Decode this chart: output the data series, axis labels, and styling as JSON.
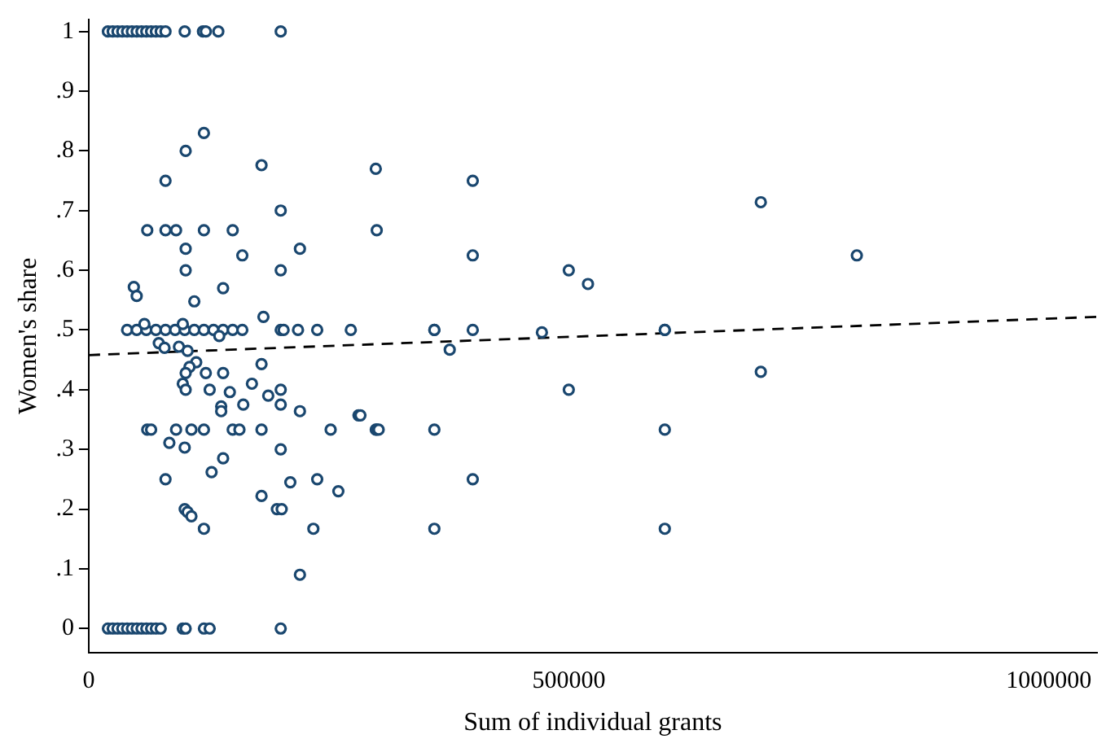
{
  "chart_data": {
    "type": "scatter",
    "xlabel": "Sum of individual grants",
    "ylabel": "Women's share",
    "xlim": [
      0,
      1050000
    ],
    "xticks": [
      0,
      500000,
      1000000
    ],
    "ylim": [
      -0.04,
      1.02
    ],
    "yticks": [
      0,
      {
        "value": 0.1,
        "label": ".1"
      },
      {
        "value": 0.2,
        "label": ".2"
      },
      {
        "value": 0.3,
        "label": ".3"
      },
      {
        "value": 0.4,
        "label": ".4"
      },
      {
        "value": 0.5,
        "label": ".5"
      },
      {
        "value": 0.6,
        "label": ".6"
      },
      {
        "value": 0.7,
        "label": ".7"
      },
      {
        "value": 0.8,
        "label": ".8"
      },
      {
        "value": 0.9,
        "label": ".9"
      },
      1
    ],
    "grid": false,
    "legend": false,
    "marker": "circle",
    "series": [
      {
        "color": "#1a476f",
        "x": [
          20000,
          25000,
          30000,
          35000,
          40000,
          45000,
          50000,
          55000,
          60000,
          65000,
          70000,
          75000,
          80000,
          100000,
          119000,
          122000,
          135000,
          200000,
          120000,
          101000,
          180000,
          80000,
          200000,
          61000,
          80000,
          91000,
          120000,
          150000,
          101000,
          160000,
          220000,
          101000,
          200000,
          47000,
          50000,
          110000,
          140000,
          182000,
          40000,
          50000,
          60000,
          70000,
          80000,
          90000,
          100000,
          110000,
          120000,
          130000,
          140000,
          150000,
          160000,
          200000,
          203000,
          218000,
          238000,
          273000,
          360000,
          400000,
          472000,
          600000,
          58000,
          98000,
          136000,
          73000,
          79000,
          94000,
          103000,
          112000,
          105000,
          101000,
          122000,
          140000,
          180000,
          98000,
          101000,
          126000,
          147000,
          170000,
          187000,
          200000,
          138000,
          138000,
          161000,
          200000,
          220000,
          281000,
          61000,
          65000,
          91000,
          107000,
          120000,
          150000,
          157000,
          180000,
          252000,
          299000,
          84000,
          100000,
          200000,
          140000,
          80000,
          128000,
          210000,
          238000,
          260000,
          180000,
          100000,
          103000,
          107000,
          196000,
          201000,
          120000,
          234000,
          220000,
          20000,
          25000,
          30000,
          35000,
          40000,
          45000,
          50000,
          55000,
          60000,
          65000,
          70000,
          75000,
          98000,
          101000,
          120000,
          126000,
          200000,
          700000,
          800000,
          500000,
          520000,
          700000,
          500000,
          600000,
          600000,
          400000,
          400000,
          400000,
          360000,
          360000,
          283000,
          300000,
          302000,
          299000,
          300000,
          360000,
          376000,
          600000
        ],
        "values": [
          1,
          1,
          1,
          1,
          1,
          1,
          1,
          1,
          1,
          1,
          1,
          1,
          1,
          1,
          1,
          1,
          1,
          1,
          0.83,
          0.8,
          0.776,
          0.75,
          0.7,
          0.667,
          0.667,
          0.667,
          0.667,
          0.667,
          0.636,
          0.625,
          0.636,
          0.6,
          0.6,
          0.572,
          0.557,
          0.548,
          0.57,
          0.522,
          0.5,
          0.5,
          0.5,
          0.5,
          0.5,
          0.5,
          0.5,
          0.5,
          0.5,
          0.5,
          0.5,
          0.5,
          0.5,
          0.5,
          0.5,
          0.5,
          0.5,
          0.5,
          0.5,
          0.5,
          0.496,
          0.5,
          0.51,
          0.51,
          0.49,
          0.478,
          0.47,
          0.472,
          0.465,
          0.446,
          0.438,
          0.428,
          0.428,
          0.428,
          0.443,
          0.41,
          0.4,
          0.4,
          0.396,
          0.41,
          0.39,
          0.4,
          0.372,
          0.364,
          0.375,
          0.375,
          0.364,
          0.357,
          0.333,
          0.333,
          0.333,
          0.333,
          0.333,
          0.333,
          0.333,
          0.333,
          0.333,
          0.333,
          0.311,
          0.303,
          0.3,
          0.285,
          0.25,
          0.262,
          0.245,
          0.25,
          0.23,
          0.222,
          0.2,
          0.195,
          0.188,
          0.2,
          0.2,
          0.167,
          0.167,
          0.09,
          0,
          0,
          0,
          0,
          0,
          0,
          0,
          0,
          0,
          0,
          0,
          0,
          0,
          0,
          0,
          0,
          0,
          0.714,
          0.625,
          0.6,
          0.577,
          0.43,
          0.4,
          0.333,
          0.167,
          0.75,
          0.625,
          0.25,
          0.333,
          0.167,
          0.357,
          0.333,
          0.333,
          0.77,
          0.667,
          0.5,
          0.467,
          0.5
        ]
      },
      {
        "type": "line",
        "color": "#000000",
        "line_style": "dashed",
        "marker": "none",
        "x": [
          0,
          1050000
        ],
        "values": [
          0.458,
          0.522
        ]
      }
    ]
  }
}
